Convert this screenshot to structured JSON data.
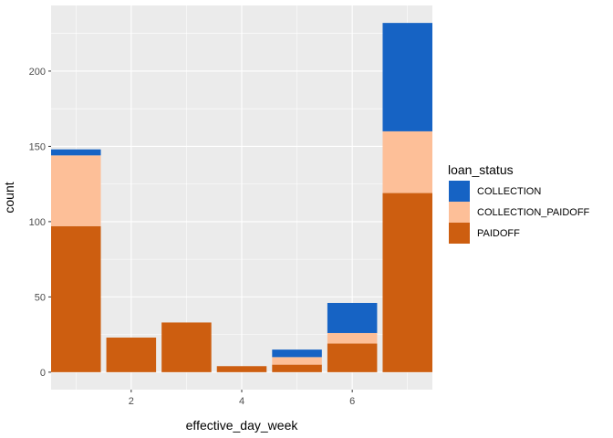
{
  "chart_data": {
    "type": "bar",
    "stacked": true,
    "x": [
      1,
      2,
      3,
      4,
      5,
      6,
      7
    ],
    "series": [
      {
        "name": "PAIDOFF",
        "color": "#CD5E10",
        "values": [
          97,
          23,
          33,
          4,
          5,
          19,
          119
        ]
      },
      {
        "name": "COLLECTION_PAIDOFF",
        "color": "#FDBF98",
        "values": [
          47,
          0,
          0,
          0,
          5,
          7,
          41
        ]
      },
      {
        "name": "COLLECTION",
        "color": "#1663C4",
        "values": [
          4,
          0,
          0,
          0,
          5,
          20,
          72
        ]
      }
    ],
    "xlabel": "effective_day_week",
    "ylabel": "count",
    "xlim": [
      0.55,
      7.45
    ],
    "ylim": [
      -11.6,
      243.6
    ],
    "x_ticks": [
      2,
      4,
      6
    ],
    "x_tick_labels": [
      "2",
      "4",
      "6"
    ],
    "y_ticks": [
      0,
      50,
      100,
      150,
      200
    ],
    "y_tick_labels": [
      "0",
      "50",
      "100",
      "150",
      "200"
    ],
    "grid": true,
    "legend": {
      "title": "loan_status",
      "position": "right",
      "entries": [
        "COLLECTION",
        "COLLECTION_PAIDOFF",
        "PAIDOFF"
      ]
    }
  }
}
